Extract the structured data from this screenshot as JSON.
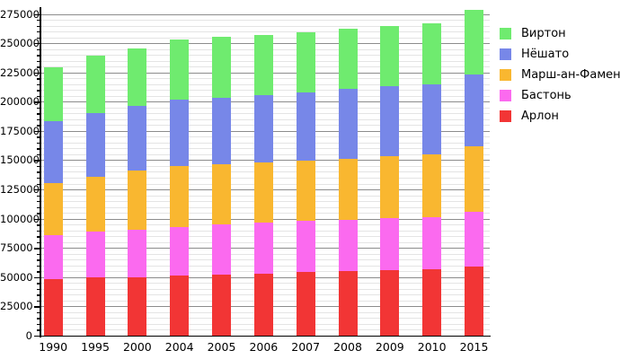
{
  "chart_data": {
    "type": "bar",
    "stacked": true,
    "title": "",
    "xlabel": "",
    "ylabel": "",
    "categories": [
      "1990",
      "1995",
      "2000",
      "2004",
      "2005",
      "2006",
      "2007",
      "2008",
      "2009",
      "2010",
      "2015"
    ],
    "series": [
      {
        "name": "Арлон",
        "color": "#f23535",
        "values": [
          48500,
          50000,
          50500,
          51500,
          52500,
          53500,
          54500,
          55500,
          56000,
          57000,
          59500
        ]
      },
      {
        "name": "Бастонь",
        "color": "#fb6aef",
        "values": [
          38000,
          39500,
          40500,
          42000,
          43000,
          43500,
          44000,
          44000,
          44500,
          44500,
          46500
        ]
      },
      {
        "name": "Марш-ан-Фамен",
        "color": "#f9b730",
        "values": [
          44000,
          47000,
          50500,
          51500,
          51500,
          51500,
          51500,
          52000,
          53000,
          53500,
          56000
        ]
      },
      {
        "name": "Нёшато",
        "color": "#7787e8",
        "values": [
          53000,
          54000,
          55000,
          57000,
          57000,
          57500,
          58000,
          59500,
          60000,
          60500,
          61500
        ]
      },
      {
        "name": "Виртон",
        "color": "#6feb6f",
        "values": [
          46000,
          49000,
          49500,
          51500,
          51500,
          51500,
          51500,
          51500,
          51500,
          52000,
          55000
        ]
      }
    ],
    "stack_order": "bottom-to-top",
    "totals": [
      229500,
      239500,
      246000,
      253500,
      255500,
      257500,
      259500,
      262500,
      265000,
      267500,
      278500
    ],
    "legend": {
      "position": "right",
      "entries_top_to_bottom": [
        "Виртон",
        "Нёшато",
        "Марш-ан-Фамен",
        "Бастонь",
        "Арлон"
      ]
    },
    "ylim": [
      0,
      275000
    ],
    "ytick_labels": [
      "0",
      "25000",
      "50000",
      "75000",
      "100000",
      "125000",
      "150000",
      "175000",
      "200000",
      "225000",
      "250000",
      "275000"
    ],
    "yticks_major_step": 25000,
    "yticks_minor_step": 5000,
    "grid": {
      "major": true,
      "minor": true
    }
  },
  "colors": {
    "background": "#ffffff",
    "axis": "#000000",
    "major_grid": "#8c8c8c",
    "minor_grid": "#e4e4e4",
    "text": "#000000"
  }
}
